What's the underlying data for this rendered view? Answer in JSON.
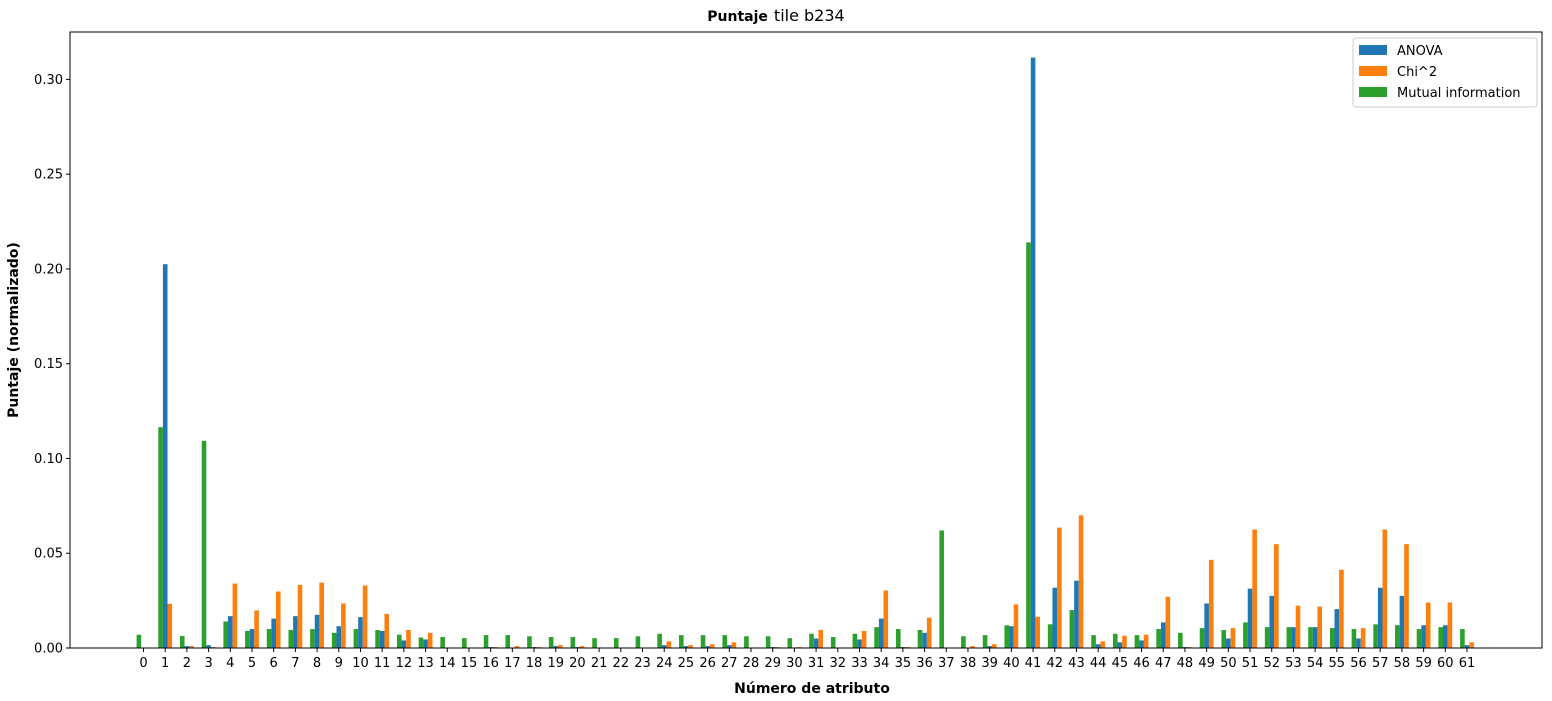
{
  "chart_data": {
    "type": "bar",
    "title_bold": "Puntaje",
    "title_rest": "tile b234",
    "xlabel": "Número de atributo",
    "ylabel": "Puntaje (normalizado)",
    "ylim": [
      0,
      0.325
    ],
    "yticks": [
      "0.00",
      "0.05",
      "0.10",
      "0.15",
      "0.20",
      "0.25",
      "0.30"
    ],
    "legend_position": "top-right",
    "categories": [
      "0",
      "1",
      "2",
      "3",
      "4",
      "5",
      "6",
      "7",
      "8",
      "9",
      "10",
      "11",
      "12",
      "13",
      "14",
      "15",
      "16",
      "17",
      "18",
      "19",
      "20",
      "21",
      "22",
      "23",
      "24",
      "25",
      "26",
      "27",
      "28",
      "29",
      "30",
      "31",
      "32",
      "33",
      "34",
      "35",
      "36",
      "37",
      "38",
      "39",
      "40",
      "41",
      "42",
      "43",
      "44",
      "45",
      "46",
      "47",
      "48",
      "49",
      "50",
      "51",
      "52",
      "53",
      "54",
      "55",
      "56",
      "57",
      "58",
      "59",
      "60",
      "61"
    ],
    "series": [
      {
        "name": "Mutual information",
        "color": "#2ca02c",
        "values": [
          0.007,
          0.1165,
          0.0063,
          0.1093,
          0.014,
          0.009,
          0.01,
          0.0095,
          0.01,
          0.008,
          0.01,
          0.0095,
          0.007,
          0.0055,
          0.0058,
          0.0052,
          0.0068,
          0.0068,
          0.0062,
          0.0058,
          0.0058,
          0.0052,
          0.0052,
          0.0062,
          0.0075,
          0.0068,
          0.0068,
          0.0068,
          0.0062,
          0.0062,
          0.0052,
          0.0075,
          0.0058,
          0.0075,
          0.011,
          0.01,
          0.0095,
          0.062,
          0.0062,
          0.0068,
          0.012,
          0.214,
          0.0125,
          0.02,
          0.0068,
          0.0075,
          0.0068,
          0.01,
          0.008,
          0.0105,
          0.0095,
          0.0135,
          0.011,
          0.011,
          0.011,
          0.0105,
          0.01,
          0.0125,
          0.012,
          0.01,
          0.011,
          0.01
        ]
      },
      {
        "name": "ANOVA",
        "color": "#1f77b4",
        "values": [
          0.0,
          0.2025,
          0.001,
          0.0015,
          0.0168,
          0.01,
          0.0155,
          0.0168,
          0.0175,
          0.0115,
          0.0163,
          0.009,
          0.004,
          0.0045,
          0.0,
          0.0,
          0.0005,
          0.0,
          0.0005,
          0.001,
          0.0005,
          0.0,
          0.0,
          0.0,
          0.0015,
          0.001,
          0.001,
          0.0015,
          0.0,
          0.0005,
          0.0,
          0.005,
          0.0,
          0.0045,
          0.0155,
          0.0005,
          0.008,
          0.0,
          0.0,
          0.001,
          0.0115,
          0.3115,
          0.0318,
          0.0355,
          0.002,
          0.003,
          0.004,
          0.0135,
          0.0005,
          0.0235,
          0.005,
          0.0313,
          0.0275,
          0.011,
          0.011,
          0.0205,
          0.005,
          0.0318,
          0.0275,
          0.012,
          0.012,
          0.0015
        ]
      },
      {
        "name": "Chi^2",
        "color": "#ff7f0e",
        "values": [
          0.0,
          0.0233,
          0.001,
          0.0005,
          0.034,
          0.0198,
          0.0298,
          0.0333,
          0.0345,
          0.0235,
          0.033,
          0.018,
          0.0095,
          0.008,
          0.0,
          0.0,
          0.0005,
          0.001,
          0.0005,
          0.0015,
          0.001,
          0.0,
          0.0,
          0.0,
          0.0035,
          0.0015,
          0.002,
          0.003,
          0.0,
          0.0005,
          0.0005,
          0.0095,
          0.0,
          0.009,
          0.0303,
          0.0005,
          0.016,
          0.0,
          0.001,
          0.002,
          0.023,
          0.0165,
          0.0635,
          0.07,
          0.0035,
          0.0065,
          0.007,
          0.027,
          0.0005,
          0.0465,
          0.0105,
          0.0625,
          0.0548,
          0.0223,
          0.0218,
          0.0413,
          0.0105,
          0.0625,
          0.0548,
          0.024,
          0.024,
          0.003
        ]
      }
    ],
    "legend": [
      {
        "name": "ANOVA",
        "color": "#1f77b4"
      },
      {
        "name": "Chi^2",
        "color": "#ff7f0e"
      },
      {
        "name": "Mutual information",
        "color": "#2ca02c"
      }
    ]
  }
}
